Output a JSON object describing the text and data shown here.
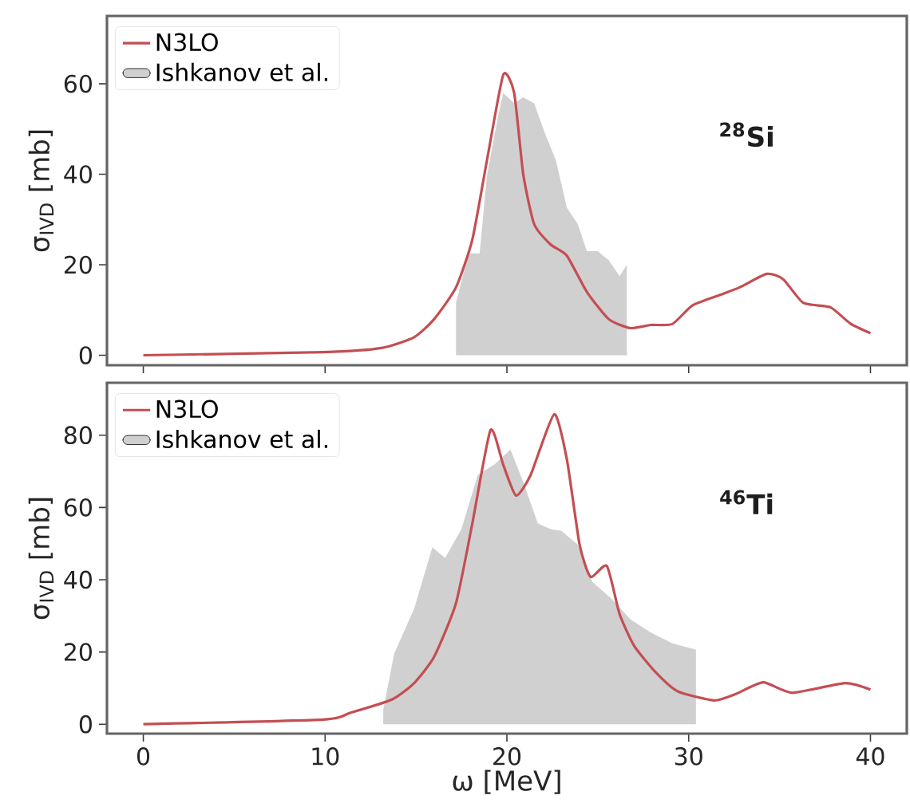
{
  "chart_data": [
    {
      "type": "line",
      "ylabel": "σ$_{IVD}$ [mb]",
      "xlim": [
        -2,
        42
      ],
      "ylim": [
        -2.2,
        75
      ],
      "xticks": [
        {
          "value": 0,
          "label": null
        },
        {
          "value": 10,
          "label": null
        },
        {
          "value": 20,
          "label": null
        },
        {
          "value": 30,
          "label": null
        },
        {
          "value": 40,
          "label": null
        }
      ],
      "yticks": [
        0,
        20,
        40,
        60
      ],
      "tick_labels": "y",
      "legend": "top left",
      "grid": false,
      "annotations": [
        "$^{28}$**Si**"
      ],
      "series": [
        {
          "name": "N3LO",
          "color": "#c44e52",
          "x": [
            0,
            9.9,
            13.1,
            14.9,
            16.0,
            17.2,
            18.1,
            18.9,
            19.8,
            20.4,
            20.9,
            21.5,
            22.4,
            23.3,
            24.4,
            25.6,
            26.8,
            27.9,
            29.1,
            30.2,
            31.7,
            32.8,
            34.3,
            35.2,
            36.3,
            37.8,
            38.9,
            40.0
          ],
          "values": [
            0,
            0.7,
            1.6,
            4,
            8,
            15,
            25.6,
            43,
            62,
            58,
            40,
            29,
            24.5,
            22,
            14,
            8,
            6,
            6.7,
            6.9,
            11,
            13.3,
            15,
            18,
            16.8,
            11.6,
            10.6,
            7,
            4.9
          ]
        },
        {
          "name": "Ishkanov et al.",
          "type": "area",
          "color": "#d0d0d0",
          "x": [
            17.2,
            17.2,
            17.9,
            18.5,
            18.9,
            19.5,
            19.8,
            20.4,
            20.9,
            21.5,
            22.1,
            22.7,
            23.3,
            23.9,
            24.4,
            25.0,
            25.6,
            26.2,
            26.6,
            26.6
          ],
          "values": [
            0,
            11.6,
            22.5,
            22.5,
            39.6,
            52.5,
            58,
            55.7,
            57,
            55.7,
            49,
            43,
            32.6,
            29,
            23,
            23,
            21,
            17.5,
            20,
            0
          ]
        }
      ]
    },
    {
      "type": "line",
      "xlabel": "ω [MeV]",
      "ylabel": "σ$_{IVD}$ [mb]",
      "xlim": [
        -2,
        42
      ],
      "ylim": [
        -2.6,
        94.5
      ],
      "xticks": [
        0,
        10,
        20,
        30,
        40
      ],
      "yticks": [
        0,
        20,
        40,
        60,
        80
      ],
      "legend": "top left",
      "grid": false,
      "annotations": [
        "$^{46}$**Ti**"
      ],
      "series": [
        {
          "name": "N3LO",
          "color": "#c44e52",
          "x": [
            0,
            9.9,
            11.4,
            13.7,
            14.9,
            16.0,
            17.2,
            18.1,
            19.1,
            19.8,
            20.5,
            21.3,
            22.6,
            23.3,
            24.0,
            24.6,
            25.5,
            26.2,
            27.0,
            28.2,
            29.4,
            31.4,
            32.6,
            34.1,
            35.7,
            38.6,
            40.0
          ],
          "values": [
            0,
            1.3,
            3.2,
            6.9,
            11.4,
            18.7,
            33.5,
            55.6,
            81.4,
            71.8,
            63.3,
            68.9,
            85.8,
            73.3,
            49.7,
            40.8,
            43.8,
            30.5,
            21.7,
            14.3,
            9.1,
            6.6,
            8.4,
            11.6,
            8.7,
            11.4,
            9.6
          ]
        },
        {
          "name": "Ishkanov et al.",
          "type": "area",
          "color": "#d0d0d0",
          "x": [
            13.2,
            13.2,
            13.8,
            14.9,
            15.9,
            16.6,
            17.5,
            18.4,
            19.3,
            20.2,
            20.9,
            21.7,
            22.4,
            23.0,
            23.9,
            24.7,
            25.7,
            26.8,
            27.9,
            29.1,
            30.4,
            30.4
          ],
          "values": [
            0,
            4,
            19.5,
            32,
            49,
            46,
            54,
            69,
            71.8,
            76,
            67,
            55.6,
            54,
            53.5,
            49.7,
            39.4,
            35,
            29,
            25.4,
            22.4,
            20.6,
            0
          ]
        }
      ]
    }
  ]
}
